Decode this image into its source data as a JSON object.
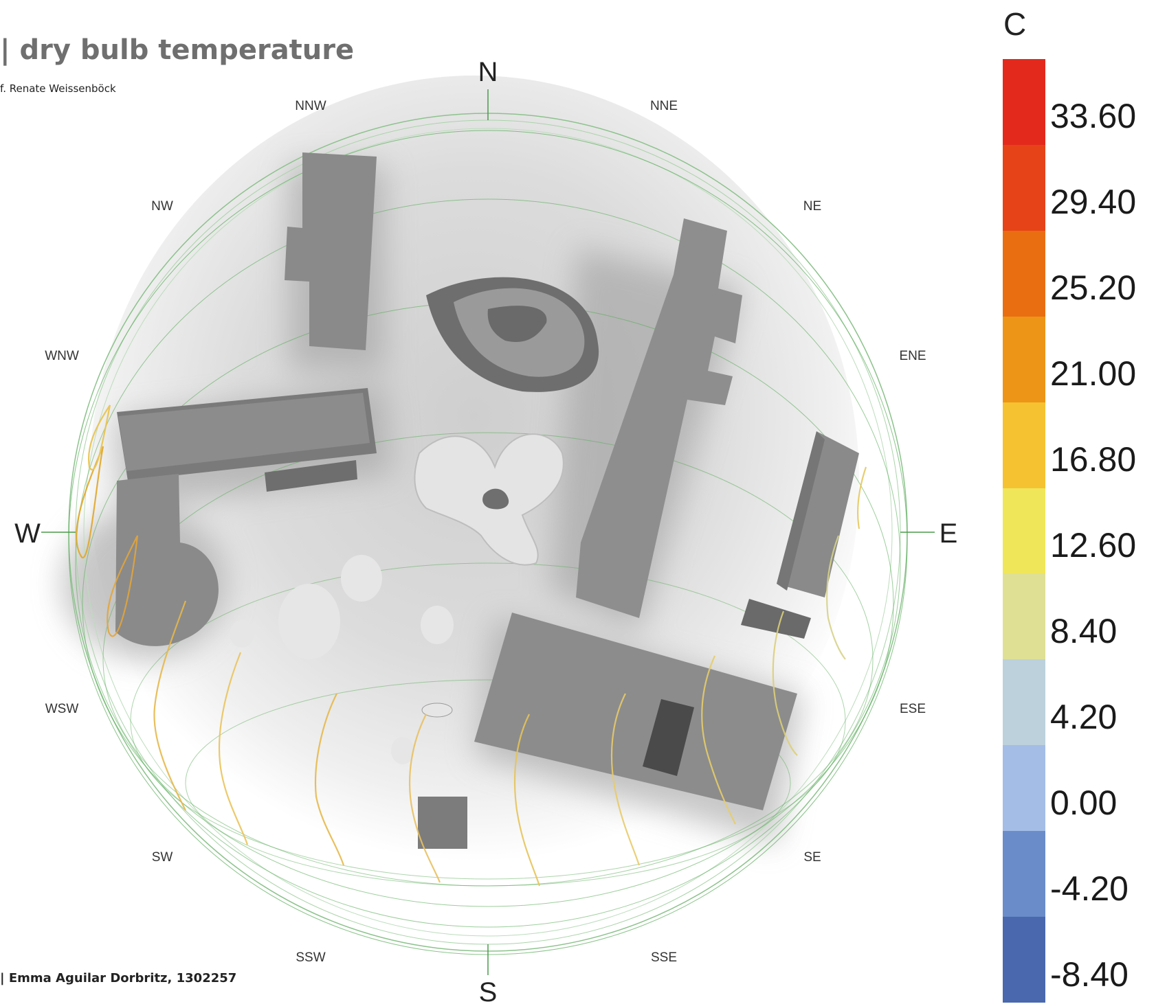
{
  "header": {
    "title": "| dry bulb temperature",
    "subtitle": "f. Renate Weissenböck",
    "author": "| Emma Aguilar Dorbritz, 1302257"
  },
  "compass": {
    "north": "N",
    "south": "S",
    "east": "E",
    "west": "W",
    "nnw": "NNW",
    "nne": "NNE",
    "nw": "NW",
    "ne": "NE",
    "wnw": "WNW",
    "ene": "ENE",
    "wsw": "WSW",
    "ese": "ESE",
    "sw": "SW",
    "se": "SE",
    "ssw": "SSW",
    "sse": "SSE"
  },
  "legend": {
    "unit": "C",
    "labels": [
      "33.60",
      "29.40",
      "25.20",
      "21.00",
      "16.80",
      "12.60",
      "8.40",
      "4.20",
      "0.00",
      "-4.20",
      "-8.40"
    ],
    "colors": [
      "#e3291c",
      "#e64318",
      "#e96e12",
      "#ec9516",
      "#f5c232",
      "#f0e659",
      "#dfe094",
      "#bcd1dc",
      "#a3bde6",
      "#6a8cc8",
      "#4a68ad"
    ]
  }
}
